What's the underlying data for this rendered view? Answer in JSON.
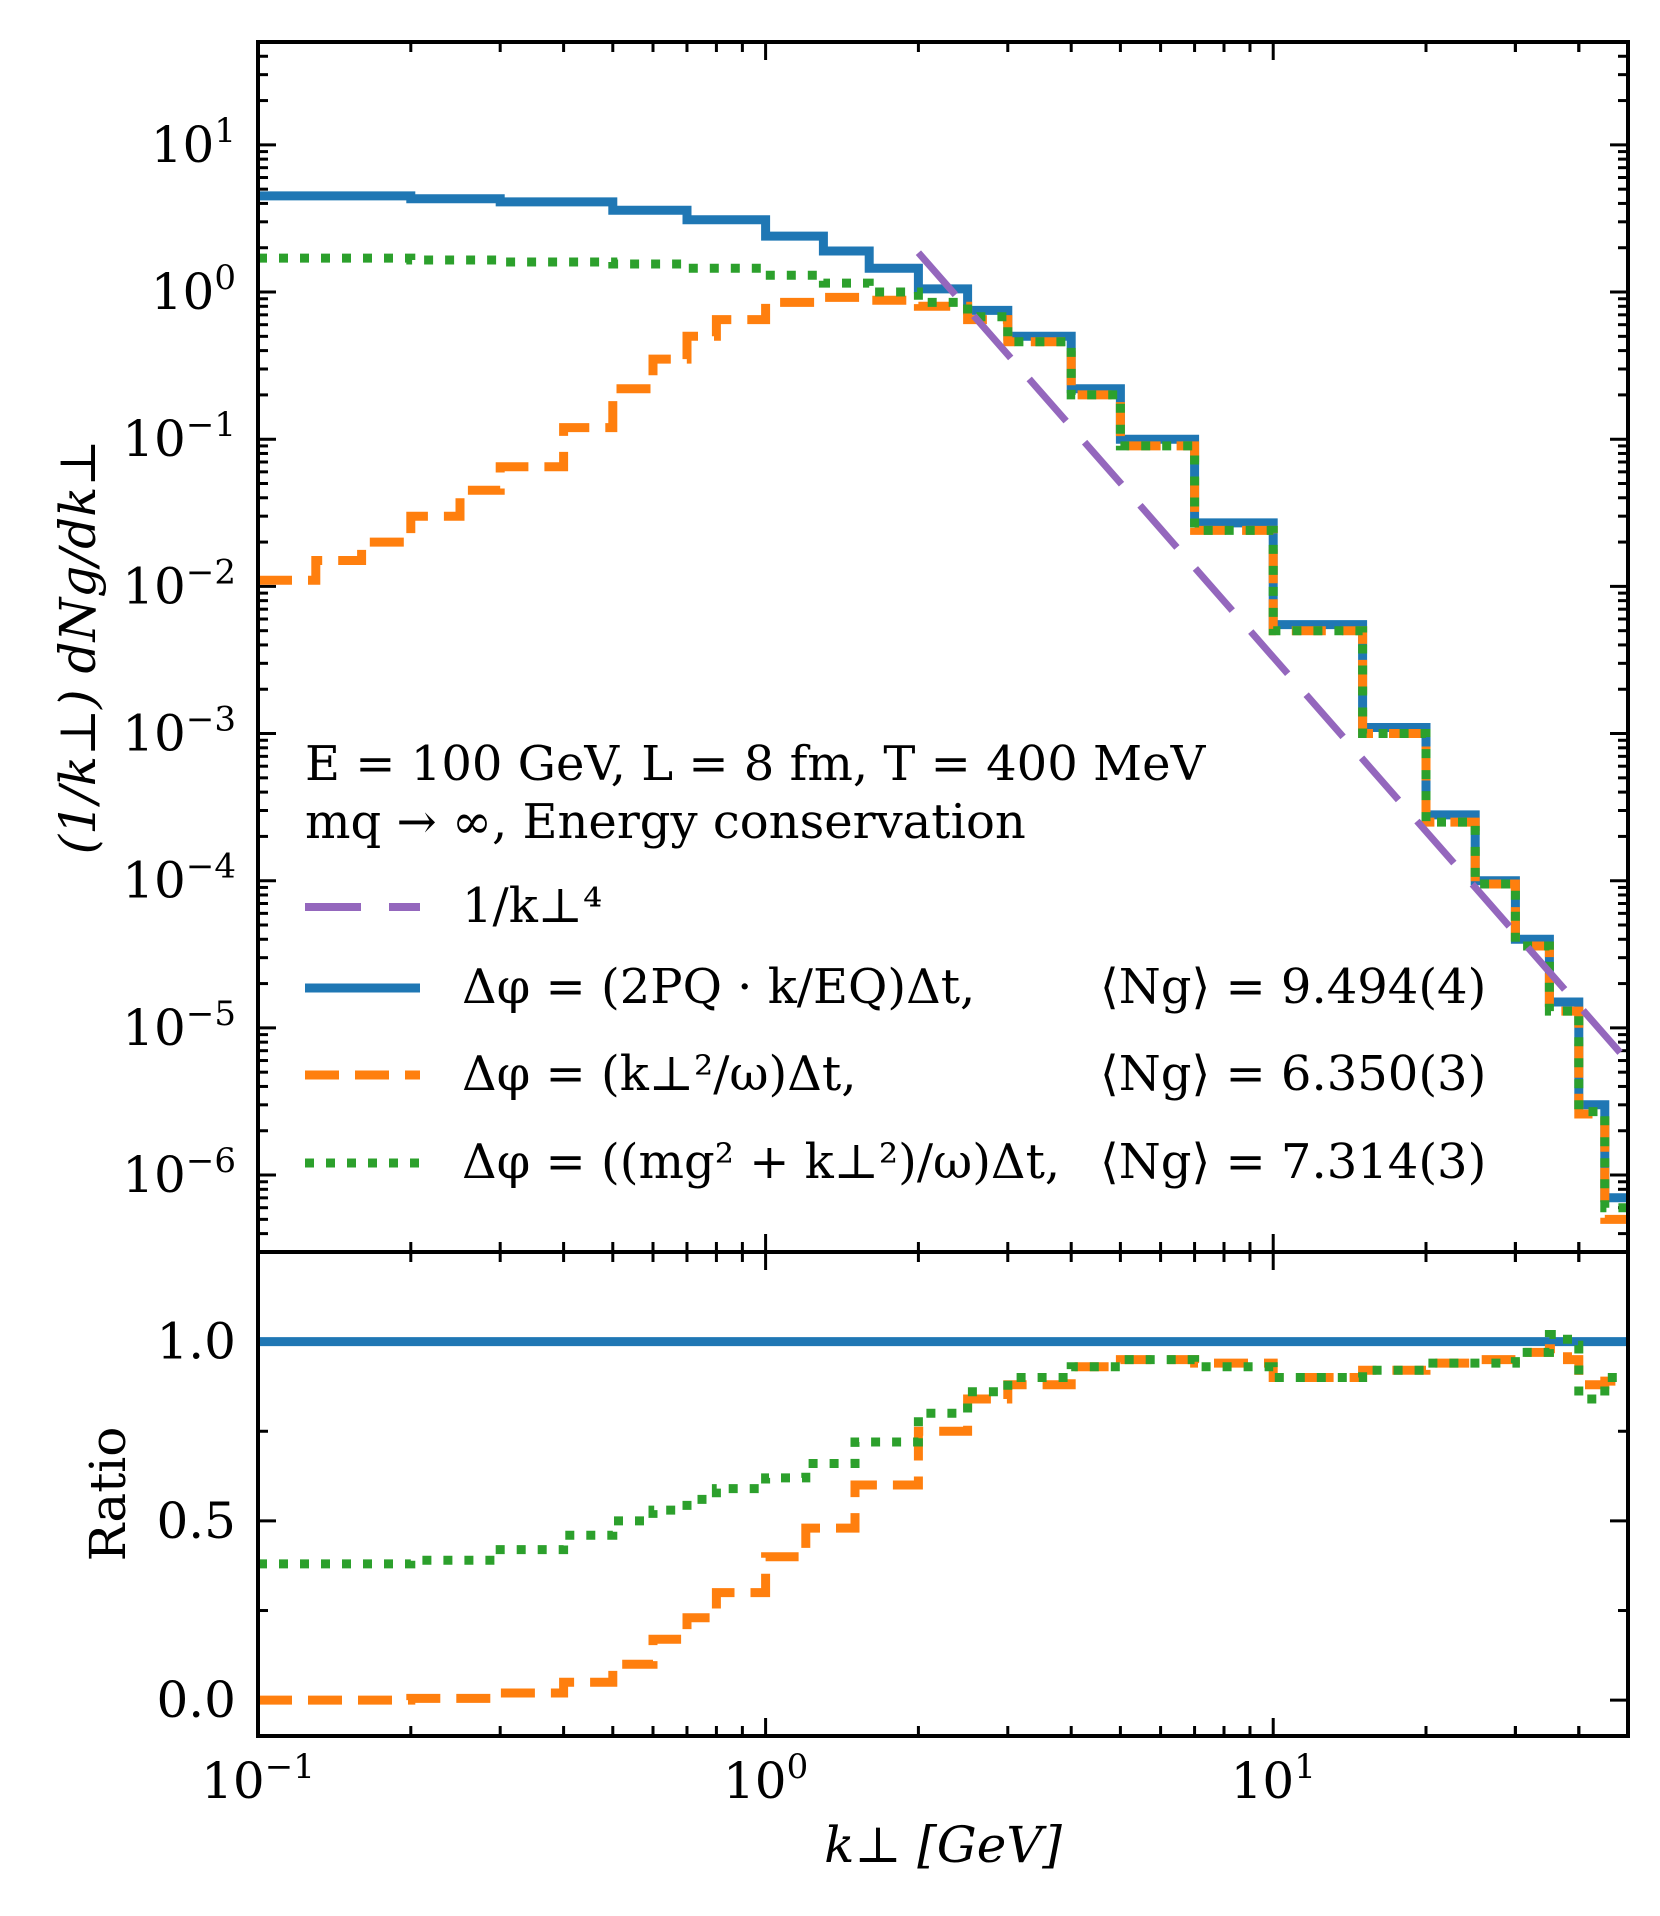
{
  "chart_data": [
    {
      "panel": "top",
      "type": "line",
      "yscale": "log",
      "xscale": "log",
      "xlim": [
        0.1,
        50
      ],
      "ylim": [
        3e-07,
        50
      ],
      "ylabel": "(1/k⊥) dNg/dk⊥",
      "yticks": [
        {
          "value": 10,
          "base": "10",
          "exp": "1"
        },
        {
          "value": 1,
          "base": "10",
          "exp": "0"
        },
        {
          "value": 0.1,
          "base": "10",
          "exp": "−1"
        },
        {
          "value": 0.01,
          "base": "10",
          "exp": "−2"
        },
        {
          "value": 0.001,
          "base": "10",
          "exp": "−3"
        },
        {
          "value": 0.0001,
          "base": "10",
          "exp": "−4"
        },
        {
          "value": 1e-05,
          "base": "10",
          "exp": "−5"
        },
        {
          "value": 1e-06,
          "base": "10",
          "exp": "−6"
        }
      ],
      "annotation_lines": [
        "E = 100 GeV,   L = 8 fm,   T = 400 MeV",
        "mq → ∞,   Energy conservation"
      ],
      "series": [
        {
          "name": "Δφ = (2P_Q · k/E_Q)Δt",
          "legend_text": "Δφ = (2PQ · k/EQ)Δt,",
          "mean_label": "⟨Ng⟩ = 9.494(4)",
          "color": "#1f77b4",
          "style": "solid",
          "x": [
            0.1,
            0.2,
            0.3,
            0.5,
            0.7,
            1.0,
            1.3,
            1.6,
            2.0,
            2.5,
            3.0,
            4.0,
            5.0,
            7.0,
            10.0,
            15.0,
            20.0,
            25.0,
            30.0,
            35.0,
            40.0,
            45.0
          ],
          "y": [
            4.5,
            4.3,
            4.1,
            3.6,
            3.1,
            2.4,
            1.9,
            1.45,
            1.05,
            0.75,
            0.5,
            0.22,
            0.1,
            0.027,
            0.0055,
            0.0011,
            0.00028,
            0.0001,
            4e-05,
            1.5e-05,
            3e-06,
            7e-07
          ]
        },
        {
          "name": "Δφ = (k⊥²/ω)Δt",
          "legend_text": "Δφ = (k⊥²/ω)Δt,",
          "mean_label": "⟨Ng⟩ = 6.350(3)",
          "color": "#ff7f0e",
          "style": "dashed",
          "x": [
            0.1,
            0.13,
            0.16,
            0.2,
            0.25,
            0.3,
            0.4,
            0.5,
            0.6,
            0.7,
            0.8,
            1.0,
            1.3,
            1.6,
            2.0,
            2.5,
            3.0,
            4.0,
            5.0,
            7.0,
            10.0,
            15.0,
            20.0,
            25.0,
            30.0,
            35.0,
            40.0,
            45.0
          ],
          "y": [
            0.011,
            0.015,
            0.02,
            0.03,
            0.045,
            0.065,
            0.12,
            0.22,
            0.35,
            0.5,
            0.65,
            0.85,
            0.92,
            0.88,
            0.8,
            0.65,
            0.46,
            0.2,
            0.09,
            0.024,
            0.005,
            0.001,
            0.00025,
            9.5e-05,
            3.6e-05,
            1.3e-05,
            2.6e-06,
            5e-07
          ]
        },
        {
          "name": "Δφ = ((m_g² + k⊥²)/ω)Δt",
          "legend_text": "Δφ = ((mg² + k⊥²)/ω)Δt,",
          "mean_label": "⟨Ng⟩ = 7.314(3)",
          "color": "#2ca02c",
          "style": "dotted",
          "x": [
            0.1,
            0.2,
            0.3,
            0.5,
            0.7,
            1.0,
            1.3,
            1.6,
            2.0,
            2.5,
            3.0,
            4.0,
            5.0,
            7.0,
            10.0,
            15.0,
            20.0,
            25.0,
            30.0,
            35.0,
            40.0,
            45.0
          ],
          "y": [
            1.7,
            1.65,
            1.6,
            1.55,
            1.45,
            1.3,
            1.15,
            1.0,
            0.85,
            0.68,
            0.46,
            0.2,
            0.09,
            0.024,
            0.005,
            0.001,
            0.00025,
            9.5e-05,
            3.6e-05,
            1.3e-05,
            2.7e-06,
            6e-07
          ]
        },
        {
          "name": "1/k⊥⁴",
          "legend_text": "1/k⊥⁴",
          "color": "#9467bd",
          "style": "longdash",
          "x": [
            2.0,
            50.0
          ],
          "y": [
            1.85,
            5.9e-06
          ]
        }
      ]
    },
    {
      "panel": "bottom",
      "type": "line",
      "xscale": "log",
      "xlim": [
        0.1,
        50
      ],
      "ylim": [
        -0.1,
        1.25
      ],
      "xlabel": "k⊥ [GeV]",
      "ylabel": "Ratio",
      "xticks": [
        {
          "value": 0.1,
          "base": "10",
          "exp": "−1"
        },
        {
          "value": 1,
          "base": "10",
          "exp": "0"
        },
        {
          "value": 10,
          "base": "10",
          "exp": "1"
        }
      ],
      "yticks": [
        {
          "value": 0.0,
          "label": "0.0"
        },
        {
          "value": 0.5,
          "label": "0.5"
        },
        {
          "value": 1.0,
          "label": "1.0"
        }
      ],
      "series": [
        {
          "name": "reference",
          "color": "#1f77b4",
          "style": "solid",
          "x": [
            0.1,
            50
          ],
          "y": [
            1.0,
            1.0
          ]
        },
        {
          "name": "Δφ = (k⊥²/ω)Δt ratio",
          "color": "#ff7f0e",
          "style": "dashed",
          "x": [
            0.1,
            0.2,
            0.3,
            0.4,
            0.5,
            0.6,
            0.7,
            0.8,
            1.0,
            1.2,
            1.5,
            2.0,
            2.5,
            3.0,
            4.0,
            5.0,
            7.0,
            10.0,
            15.0,
            20.0,
            25.0,
            30.0,
            35.0,
            38.0,
            40.0,
            45.0
          ],
          "y": [
            0.0,
            0.005,
            0.02,
            0.05,
            0.1,
            0.17,
            0.23,
            0.3,
            0.4,
            0.48,
            0.6,
            0.75,
            0.84,
            0.88,
            0.93,
            0.95,
            0.94,
            0.9,
            0.92,
            0.94,
            0.95,
            0.97,
            0.98,
            0.95,
            0.88,
            0.89
          ]
        },
        {
          "name": "Δφ = ((m_g² + k⊥²)/ω)Δt ratio",
          "color": "#2ca02c",
          "style": "dotted",
          "x": [
            0.1,
            0.2,
            0.3,
            0.4,
            0.5,
            0.6,
            0.7,
            0.8,
            1.0,
            1.2,
            1.5,
            2.0,
            2.5,
            3.0,
            4.0,
            5.0,
            7.0,
            10.0,
            15.0,
            20.0,
            25.0,
            30.0,
            35.0,
            38.0,
            40.0,
            45.0
          ],
          "y": [
            0.38,
            0.39,
            0.42,
            0.46,
            0.5,
            0.53,
            0.56,
            0.59,
            0.62,
            0.66,
            0.72,
            0.8,
            0.86,
            0.9,
            0.93,
            0.95,
            0.93,
            0.9,
            0.92,
            0.94,
            0.94,
            0.97,
            1.02,
            0.99,
            0.84,
            0.9
          ]
        }
      ]
    }
  ]
}
